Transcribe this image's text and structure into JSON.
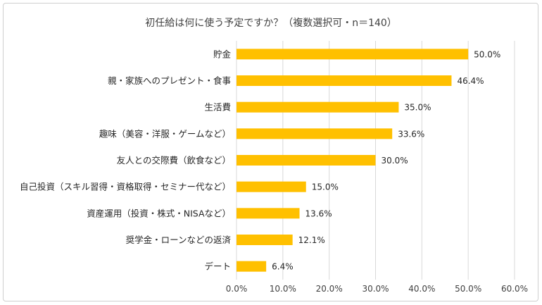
{
  "chart_data": {
    "type": "bar",
    "orientation": "horizontal",
    "title": "初任給は何に使う予定ですか？（複数選択可・n＝140）",
    "categories": [
      "貯金",
      "親・家族へのプレゼント・食事",
      "生活費",
      "趣味（美容・洋服・ゲームなど）",
      "友人との交際費（飲食など）",
      "自己投資（スキル習得・資格取得・セミナー代など）",
      "資産運用（投資・株式・NISAなど）",
      "奨学金・ローンなどの返済",
      "デート"
    ],
    "values": [
      50.0,
      46.4,
      35.0,
      33.6,
      30.0,
      15.0,
      13.6,
      12.1,
      6.4
    ],
    "data_labels": [
      "50.0%",
      "46.4%",
      "35.0%",
      "33.6%",
      "30.0%",
      "15.0%",
      "13.6%",
      "12.1%",
      "6.4%"
    ],
    "xlim": [
      0,
      60
    ],
    "xticks": [
      0,
      10,
      20,
      30,
      40,
      50,
      60
    ],
    "xtick_labels": [
      "0.0%",
      "10.0%",
      "20.0%",
      "30.0%",
      "40.0%",
      "50.0%",
      "60.0%"
    ],
    "grid": true,
    "legend": "none",
    "bar_color": "#FFC000",
    "grid_color": "#d9d9d9"
  }
}
